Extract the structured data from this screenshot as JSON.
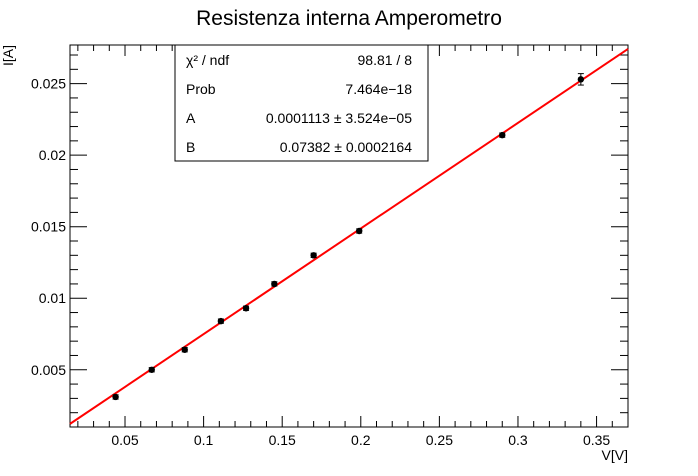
{
  "chart_data": {
    "type": "scatter",
    "title": "Resistenza interna Amperometro",
    "xlabel": "V[V]",
    "ylabel": "I[A]",
    "xlim": [
      0.015,
      0.37
    ],
    "ylim": [
      0.001,
      0.0277
    ],
    "x_ticks": [
      0.05,
      0.1,
      0.15,
      0.2,
      0.25,
      0.3,
      0.35
    ],
    "x_tick_labels": [
      "0.05",
      "0.1",
      "0.15",
      "0.2",
      "0.25",
      "0.3",
      "0.35"
    ],
    "y_ticks": [
      0.005,
      0.01,
      0.015,
      0.02,
      0.025
    ],
    "y_tick_labels": [
      "0.005",
      "0.01",
      "0.015",
      "0.02",
      "0.025"
    ],
    "grid": false,
    "points": [
      {
        "x": 0.044,
        "y": 0.0031,
        "yerr": 0.00015
      },
      {
        "x": 0.067,
        "y": 0.005,
        "yerr": 0.00015
      },
      {
        "x": 0.088,
        "y": 0.0064,
        "yerr": 0.00015
      },
      {
        "x": 0.111,
        "y": 0.0084,
        "yerr": 0.00015
      },
      {
        "x": 0.127,
        "y": 0.0093,
        "yerr": 0.00015
      },
      {
        "x": 0.145,
        "y": 0.011,
        "yerr": 0.00015
      },
      {
        "x": 0.17,
        "y": 0.013,
        "yerr": 0.00015
      },
      {
        "x": 0.199,
        "y": 0.0147,
        "yerr": 0.00015
      },
      {
        "x": 0.29,
        "y": 0.0214,
        "yerr": 0.00015
      },
      {
        "x": 0.34,
        "y": 0.0253,
        "yerr": 0.0004
      }
    ],
    "fit": {
      "A": 0.0001113,
      "B": 0.07382,
      "color": "#ff0000"
    },
    "marker_color": "#000000"
  },
  "stats": {
    "rows": [
      {
        "label": "χ² / ndf",
        "value": "98.81 / 8"
      },
      {
        "label": "Prob",
        "value": "7.464e−18"
      },
      {
        "label": "A",
        "value": "0.0001113 ± 3.524e−05"
      },
      {
        "label": "B",
        "value": "0.07382 ± 0.0002164"
      }
    ]
  }
}
